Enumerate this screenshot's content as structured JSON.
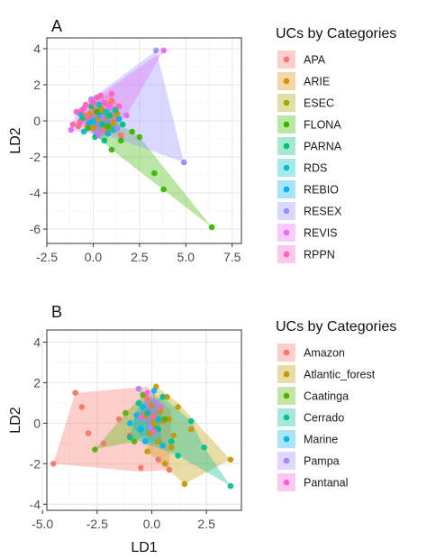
{
  "chart_data": [
    {
      "type": "scatter",
      "panel": "A",
      "xlabel": "",
      "ylabel": "LD2",
      "xlim": [
        -2.5,
        8.0
      ],
      "ylim": [
        -6.8,
        4.6
      ],
      "x_ticks": [
        -2.5,
        0.0,
        2.5,
        5.0,
        7.5
      ],
      "x_tick_labels": [
        "-2.5",
        "0.0",
        "2.5",
        "5.0",
        "7.5"
      ],
      "y_ticks": [
        4,
        2,
        0,
        -2,
        -4,
        -6
      ],
      "y_tick_labels": [
        "4",
        "2",
        "0",
        "-2",
        "-4",
        "-6"
      ],
      "grid": true,
      "legend": {
        "title": "UCs by Categories",
        "placement": "right",
        "entries": [
          "APA",
          "ARIE",
          "ESEC",
          "FLONA",
          "PARNA",
          "RDS",
          "REBIO",
          "RESEX",
          "REVIS",
          "RPPN"
        ]
      },
      "series": [
        {
          "name": "APA",
          "color": "#F8766D",
          "points": [
            [
              -0.5,
              0.3
            ],
            [
              0.2,
              -0.5
            ],
            [
              0.8,
              0.9
            ],
            [
              1.2,
              0.2
            ],
            [
              -0.3,
              -0.2
            ],
            [
              0.6,
              -0.6
            ],
            [
              1.5,
              -0.8
            ],
            [
              0.1,
              0.6
            ],
            [
              -0.8,
              -0.3
            ],
            [
              1.0,
              1.1
            ]
          ],
          "hull": [
            [
              -0.8,
              -0.3
            ],
            [
              0.1,
              0.6
            ],
            [
              1.0,
              1.1
            ],
            [
              1.2,
              0.2
            ],
            [
              1.5,
              -0.8
            ],
            [
              0.6,
              -0.6
            ],
            [
              0.2,
              -0.5
            ]
          ]
        },
        {
          "name": "ARIE",
          "color": "#D89000",
          "points": [
            [
              0.3,
              0.1
            ],
            [
              0.7,
              -0.3
            ],
            [
              -0.2,
              0.4
            ],
            [
              1.1,
              -0.1
            ],
            [
              0.5,
              0.5
            ],
            [
              0.0,
              -0.4
            ]
          ],
          "hull": [
            [
              -0.2,
              0.4
            ],
            [
              0.5,
              0.5
            ],
            [
              1.1,
              -0.1
            ],
            [
              0.7,
              -0.3
            ],
            [
              0.0,
              -0.4
            ]
          ]
        },
        {
          "name": "ESEC",
          "color": "#A3A500",
          "points": [
            [
              0.4,
              0.7
            ],
            [
              0.9,
              -0.4
            ],
            [
              -0.4,
              0.2
            ],
            [
              1.3,
              0.4
            ],
            [
              0.2,
              -0.8
            ],
            [
              0.6,
              0.2
            ]
          ],
          "hull": [
            [
              -0.4,
              0.2
            ],
            [
              0.4,
              0.7
            ],
            [
              1.3,
              0.4
            ],
            [
              0.9,
              -0.4
            ],
            [
              0.2,
              -0.8
            ]
          ]
        },
        {
          "name": "FLONA",
          "color": "#39B600",
          "points": [
            [
              6.4,
              -5.9
            ],
            [
              3.3,
              -2.9
            ],
            [
              3.8,
              -3.8
            ],
            [
              2.5,
              -0.9
            ],
            [
              1.5,
              -1.1
            ],
            [
              0.8,
              -0.3
            ],
            [
              0.2,
              0.5
            ],
            [
              -0.3,
              -0.4
            ],
            [
              1.0,
              -1.6
            ],
            [
              2.1,
              -0.6
            ]
          ],
          "hull": [
            [
              -0.3,
              -0.4
            ],
            [
              0.2,
              0.5
            ],
            [
              2.1,
              -0.6
            ],
            [
              2.5,
              -0.9
            ],
            [
              6.4,
              -5.9
            ],
            [
              1.0,
              -1.6
            ]
          ]
        },
        {
          "name": "PARNA",
          "color": "#00BF7D",
          "points": [
            [
              0.5,
              -0.2
            ],
            [
              1.2,
              0.6
            ],
            [
              -0.6,
              0.1
            ],
            [
              0.1,
              -0.9
            ],
            [
              1.6,
              -0.2
            ],
            [
              0.9,
              0.3
            ],
            [
              -0.1,
              0.8
            ],
            [
              0.6,
              -1.1
            ]
          ],
          "hull": [
            [
              -0.6,
              0.1
            ],
            [
              -0.1,
              0.8
            ],
            [
              1.2,
              0.6
            ],
            [
              1.6,
              -0.2
            ],
            [
              0.6,
              -1.1
            ],
            [
              0.1,
              -0.9
            ]
          ]
        },
        {
          "name": "RDS",
          "color": "#00BFC4",
          "points": [
            [
              0.0,
              0.0
            ],
            [
              0.7,
              0.5
            ],
            [
              -0.5,
              -0.6
            ],
            [
              1.1,
              -0.5
            ],
            [
              0.3,
              0.9
            ]
          ],
          "hull": [
            [
              -0.5,
              -0.6
            ],
            [
              0.0,
              0.0
            ],
            [
              0.3,
              0.9
            ],
            [
              0.7,
              0.5
            ],
            [
              1.1,
              -0.5
            ]
          ]
        },
        {
          "name": "REBIO",
          "color": "#00B0F6",
          "points": [
            [
              -0.2,
              -0.1
            ],
            [
              0.4,
              0.3
            ],
            [
              0.8,
              -0.7
            ],
            [
              -0.7,
              0.4
            ],
            [
              1.4,
              0.1
            ]
          ],
          "hull": [
            [
              -0.7,
              0.4
            ],
            [
              0.4,
              0.3
            ],
            [
              1.4,
              0.1
            ],
            [
              0.8,
              -0.7
            ],
            [
              -0.2,
              -0.1
            ]
          ]
        },
        {
          "name": "RESEX",
          "color": "#9590FF",
          "points": [
            [
              4.9,
              -2.3
            ],
            [
              3.4,
              3.9
            ],
            [
              0.5,
              0.2
            ],
            [
              -0.1,
              1.2
            ],
            [
              1.3,
              -0.4
            ],
            [
              0.2,
              -0.6
            ]
          ],
          "hull": [
            [
              -0.1,
              1.2
            ],
            [
              3.4,
              3.9
            ],
            [
              4.9,
              -2.3
            ],
            [
              0.2,
              -0.6
            ]
          ]
        },
        {
          "name": "REVIS",
          "color": "#E76BF3",
          "points": [
            [
              3.8,
              3.9
            ],
            [
              -1.2,
              -0.5
            ],
            [
              -0.1,
              1.1
            ],
            [
              0.9,
              0.8
            ],
            [
              1.8,
              0.3
            ],
            [
              0.3,
              -0.8
            ],
            [
              -0.5,
              0.7
            ]
          ],
          "hull": [
            [
              -1.2,
              -0.5
            ],
            [
              -0.5,
              0.7
            ],
            [
              -0.1,
              1.1
            ],
            [
              3.8,
              3.9
            ],
            [
              1.8,
              0.3
            ],
            [
              0.3,
              -0.8
            ]
          ]
        },
        {
          "name": "RPPN",
          "color": "#FF62BC",
          "points": [
            [
              -0.9,
              0.5
            ],
            [
              -0.4,
              0.9
            ],
            [
              0.2,
              1.3
            ],
            [
              1.0,
              1.5
            ],
            [
              -0.7,
              -0.1
            ],
            [
              0.6,
              1.0
            ],
            [
              1.4,
              0.8
            ],
            [
              -0.3,
              0.2
            ],
            [
              0.0,
              1.0
            ],
            [
              -1.1,
              -0.2
            ],
            [
              0.4,
              1.4
            ],
            [
              -0.6,
              0.6
            ]
          ],
          "hull": [
            [
              -1.1,
              -0.2
            ],
            [
              -0.9,
              0.5
            ],
            [
              0.2,
              1.3
            ],
            [
              1.0,
              1.5
            ],
            [
              1.4,
              0.8
            ],
            [
              -0.7,
              -0.1
            ]
          ]
        }
      ]
    },
    {
      "type": "scatter",
      "panel": "B",
      "xlabel": "LD1",
      "ylabel": "LD2",
      "xlim": [
        -4.8,
        4.1
      ],
      "ylim": [
        -4.3,
        4.6
      ],
      "x_ticks": [
        -5.0,
        -2.5,
        0.0,
        2.5
      ],
      "x_tick_labels": [
        "-5.0",
        "-2.5",
        "0.0",
        "2.5"
      ],
      "y_ticks": [
        4,
        2,
        0,
        -2,
        -4
      ],
      "y_tick_labels": [
        "4",
        "2",
        "0",
        "-2",
        "-4"
      ],
      "grid": true,
      "legend": {
        "title": "UCs by Categories",
        "placement": "right",
        "entries": [
          "Amazon",
          "Atlantic_forest",
          "Caatinga",
          "Cerrado",
          "Marine",
          "Pampa",
          "Pantanal"
        ]
      },
      "series": [
        {
          "name": "Amazon",
          "color": "#F8766D",
          "points": [
            [
              -4.5,
              -2.0
            ],
            [
              -3.5,
              1.5
            ],
            [
              -2.9,
              -0.5
            ],
            [
              -2.2,
              -1.0
            ],
            [
              -0.5,
              -2.2
            ],
            [
              0.3,
              -1.8
            ],
            [
              -1.5,
              0.2
            ],
            [
              -0.2,
              1.2
            ],
            [
              -3.2,
              0.8
            ],
            [
              0.8,
              -2.3
            ],
            [
              -1.0,
              -0.6
            ],
            [
              0.1,
              0.3
            ]
          ],
          "hull": [
            [
              -4.5,
              -2.0
            ],
            [
              -3.5,
              1.5
            ],
            [
              -0.2,
              1.8
            ],
            [
              0.9,
              0.6
            ],
            [
              0.8,
              -2.3
            ],
            [
              -0.5,
              -2.4
            ]
          ]
        },
        {
          "name": "Atlantic_forest",
          "color": "#C49A00",
          "points": [
            [
              3.6,
              -1.8
            ],
            [
              1.5,
              -3.0
            ],
            [
              0.2,
              1.8
            ],
            [
              0.5,
              0.1
            ],
            [
              -0.1,
              -0.5
            ],
            [
              0.9,
              -1.2
            ],
            [
              1.8,
              -0.3
            ],
            [
              0.0,
              0.9
            ],
            [
              0.6,
              -2.0
            ],
            [
              -0.3,
              0.4
            ],
            [
              1.2,
              0.8
            ],
            [
              0.3,
              -0.9
            ],
            [
              0.7,
              1.3
            ],
            [
              -0.2,
              -1.4
            ],
            [
              1.0,
              -0.6
            ],
            [
              0.1,
              0.0
            ],
            [
              0.4,
              0.6
            ],
            [
              0.8,
              0.2
            ]
          ],
          "hull": [
            [
              -0.3,
              0.4
            ],
            [
              0.2,
              1.8
            ],
            [
              1.2,
              1.0
            ],
            [
              3.6,
              -1.8
            ],
            [
              1.5,
              -3.0
            ],
            [
              -0.2,
              -1.4
            ]
          ]
        },
        {
          "name": "Caatinga",
          "color": "#53B400",
          "points": [
            [
              -2.6,
              -1.3
            ],
            [
              -1.2,
              0.5
            ],
            [
              -0.4,
              1.4
            ],
            [
              0.6,
              0.2
            ],
            [
              -0.8,
              -0.9
            ],
            [
              0.2,
              -0.3
            ]
          ],
          "hull": [
            [
              -2.6,
              -1.3
            ],
            [
              -1.2,
              0.5
            ],
            [
              -0.4,
              1.4
            ],
            [
              0.6,
              0.2
            ],
            [
              0.2,
              -0.3
            ],
            [
              -0.8,
              -0.9
            ]
          ]
        },
        {
          "name": "Cerrado",
          "color": "#00C094",
          "points": [
            [
              3.6,
              -3.1
            ],
            [
              1.2,
              -1.6
            ],
            [
              -0.6,
              1.0
            ],
            [
              0.5,
              1.3
            ],
            [
              1.8,
              0.1
            ],
            [
              -1.0,
              -0.7
            ],
            [
              0.3,
              -0.3
            ],
            [
              2.4,
              -1.2
            ],
            [
              0.9,
              -0.9
            ],
            [
              -0.2,
              0.5
            ]
          ],
          "hull": [
            [
              -1.0,
              -0.7
            ],
            [
              -0.6,
              1.0
            ],
            [
              0.5,
              1.3
            ],
            [
              1.8,
              0.1
            ],
            [
              2.4,
              -1.2
            ],
            [
              3.6,
              -3.1
            ],
            [
              1.2,
              -1.6
            ]
          ]
        },
        {
          "name": "Marine",
          "color": "#00B6EB",
          "points": [
            [
              -0.7,
              0.4
            ],
            [
              -0.5,
              -0.3
            ],
            [
              0.1,
              1.6
            ],
            [
              0.5,
              -1.1
            ],
            [
              -1.0,
              0.0
            ],
            [
              0.3,
              0.2
            ],
            [
              -0.3,
              -0.9
            ],
            [
              -0.4,
              0.8
            ]
          ],
          "hull": [
            [
              -1.0,
              0.0
            ],
            [
              -0.4,
              0.8
            ],
            [
              0.1,
              1.6
            ],
            [
              0.3,
              0.2
            ],
            [
              0.5,
              -1.1
            ],
            [
              -0.3,
              -0.9
            ]
          ]
        },
        {
          "name": "Pampa",
          "color": "#A58AFF",
          "points": [
            [
              -0.6,
              1.7
            ],
            [
              0.2,
              1.0
            ],
            [
              -0.1,
              -0.2
            ]
          ],
          "hull": [
            [
              -0.6,
              1.7
            ],
            [
              0.2,
              1.0
            ],
            [
              -0.1,
              -0.2
            ]
          ]
        },
        {
          "name": "Pantanal",
          "color": "#FB61D7",
          "points": [
            [
              -0.2,
              1.5
            ],
            [
              0.4,
              0.8
            ],
            [
              -0.5,
              0.3
            ],
            [
              0.1,
              -0.4
            ]
          ],
          "hull": [
            [
              -0.5,
              0.3
            ],
            [
              -0.2,
              1.5
            ],
            [
              0.4,
              0.8
            ],
            [
              0.1,
              -0.4
            ]
          ]
        }
      ]
    }
  ]
}
